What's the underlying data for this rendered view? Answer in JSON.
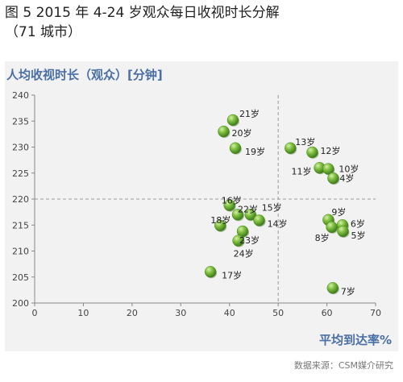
{
  "figure": {
    "title": "图 5  2015 年 4-24 岁观众每日收视时长分解",
    "subtitle": "（71 城市）",
    "source": "数据来源：CSM媒介研究"
  },
  "chart_data": {
    "type": "scatter",
    "title": "图 5  2015 年 4-24 岁观众每日收视时长分解（71 城市）",
    "xlabel": "平均到达率%",
    "ylabel": "人均收视时长（观众）[分钟]",
    "xlim": [
      0,
      70
    ],
    "ylim": [
      200,
      240
    ],
    "xticks": [
      0,
      10,
      20,
      30,
      40,
      50,
      60,
      70
    ],
    "yticks": [
      200,
      205,
      210,
      215,
      220,
      225,
      230,
      235,
      240
    ],
    "reference_lines": {
      "x": 50,
      "y": 220,
      "style": "dashed"
    },
    "marker_color": "#6aa84f",
    "points": [
      {
        "label": "21岁",
        "x": 40.7,
        "y": 235.2
      },
      {
        "label": "20岁",
        "x": 38.8,
        "y": 233.0
      },
      {
        "label": "19岁",
        "x": 41.2,
        "y": 229.8
      },
      {
        "label": "13岁",
        "x": 52.5,
        "y": 229.8
      },
      {
        "label": "12岁",
        "x": 57.0,
        "y": 229.0
      },
      {
        "label": "11岁",
        "x": 58.5,
        "y": 226.0
      },
      {
        "label": "10岁",
        "x": 60.3,
        "y": 225.8
      },
      {
        "label": "4岁",
        "x": 61.3,
        "y": 224.0
      },
      {
        "label": "16岁",
        "x": 40.0,
        "y": 218.8
      },
      {
        "label": "22岁",
        "x": 41.7,
        "y": 217.0
      },
      {
        "label": "15岁",
        "x": 44.3,
        "y": 217.0
      },
      {
        "label": "14岁",
        "x": 46.1,
        "y": 215.9
      },
      {
        "label": "18岁",
        "x": 38.1,
        "y": 214.9
      },
      {
        "label": "23岁",
        "x": 42.7,
        "y": 213.8
      },
      {
        "label": "24岁",
        "x": 41.8,
        "y": 212.0
      },
      {
        "label": "17岁",
        "x": 36.1,
        "y": 206.0
      },
      {
        "label": "9岁",
        "x": 60.3,
        "y": 216.0
      },
      {
        "label": "6岁",
        "x": 63.2,
        "y": 215.0
      },
      {
        "label": "8岁",
        "x": 61.0,
        "y": 214.6
      },
      {
        "label": "5岁",
        "x": 63.3,
        "y": 213.8
      },
      {
        "label": "7岁",
        "x": 61.2,
        "y": 202.9
      }
    ]
  }
}
